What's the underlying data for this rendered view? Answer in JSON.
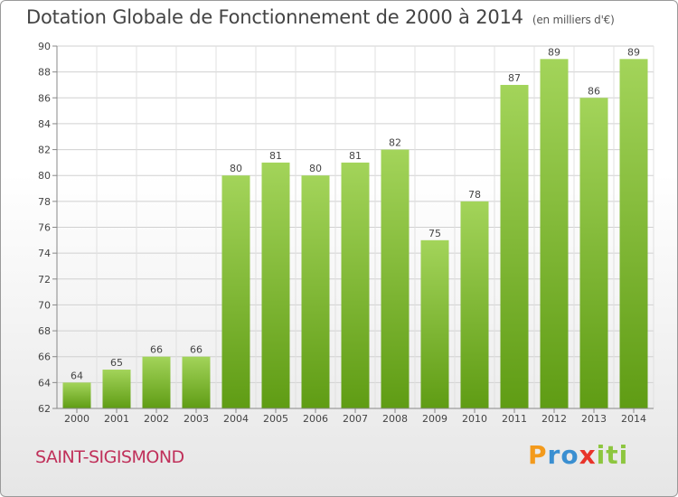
{
  "title": "Dotation Globale de Fonctionnement de 2000 à 2014",
  "unit": "(en milliers d'€)",
  "commune": "SAINT-SIGISMOND",
  "logo": {
    "letters": [
      "P",
      "r",
      "o",
      "x",
      "i",
      "t",
      "i"
    ],
    "colors": [
      "#f39a1c",
      "#3a8fd1",
      "#3a8fd1",
      "#e8342a",
      "#8dc63f",
      "#8dc63f",
      "#8dc63f"
    ]
  },
  "colors": {
    "bar_top": "#a3d45a",
    "bar_bottom": "#5f9c14",
    "title": "#444444",
    "commune": "#c0305a"
  },
  "chart_data": {
    "type": "bar",
    "title": "Dotation Globale de Fonctionnement de 2000 à 2014",
    "categories": [
      "2000",
      "2001",
      "2002",
      "2003",
      "2004",
      "2005",
      "2006",
      "2007",
      "2008",
      "2009",
      "2010",
      "2011",
      "2012",
      "2013",
      "2014"
    ],
    "values": [
      64,
      65,
      66,
      66,
      80,
      81,
      80,
      81,
      82,
      75,
      78,
      87,
      89,
      86,
      89
    ],
    "ylim": [
      62,
      90
    ],
    "yticks": [
      62,
      64,
      66,
      68,
      70,
      72,
      74,
      76,
      78,
      80,
      82,
      84,
      86,
      88,
      90
    ],
    "grid": true
  }
}
